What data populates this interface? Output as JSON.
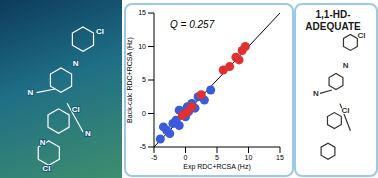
{
  "chart_data": {
    "type": "scatter",
    "x_label": "Exp RDC+RCSA (Hz)",
    "y_label": "Back-calc RDC+RCSA (Hz)",
    "annotations": [
      "Q = 0.257"
    ],
    "xlim": [
      -5,
      15
    ],
    "xticks": [
      -5,
      0,
      5,
      10,
      15
    ],
    "ylim": [
      -5,
      15
    ],
    "yticks": [
      -5,
      0,
      5,
      10,
      15
    ],
    "grid": false,
    "series": [
      {
        "type": "line",
        "color": "#000000",
        "x": [
          -5,
          15
        ],
        "values": [
          -5,
          15
        ]
      },
      {
        "type": "scatter",
        "color": "#3b5bdb",
        "marker": "circle",
        "x": [
          -4,
          -3,
          -2.5,
          -2,
          -1.5,
          -1,
          -0.5,
          0,
          0,
          0.5,
          1,
          1.5,
          2,
          -1,
          0.3,
          3,
          -3.5,
          4
        ],
        "values": [
          -3.8,
          -2.5,
          -3,
          -1.5,
          -1,
          -1.8,
          0,
          0.5,
          -0.5,
          0.3,
          1.5,
          0.8,
          2.5,
          0.5,
          1,
          2,
          -2,
          3.5
        ]
      },
      {
        "type": "scatter",
        "color": "#e03131",
        "marker": "circle",
        "x": [
          -0.5,
          0.2,
          1,
          2.5,
          6,
          7,
          8,
          9,
          9.5,
          8.5
        ],
        "values": [
          -0.3,
          0.2,
          1,
          2.8,
          6.5,
          7,
          8.4,
          9.4,
          10,
          8
        ]
      }
    ]
  },
  "side_panel": {
    "title": "1,1-HD-ADEQUATE",
    "atoms": [
      "Cl",
      "N",
      "N",
      "Cl"
    ]
  },
  "left_panel": {
    "atoms": [
      "Cl",
      "N",
      "N",
      "Cl",
      "N",
      "N",
      "Cl"
    ]
  }
}
